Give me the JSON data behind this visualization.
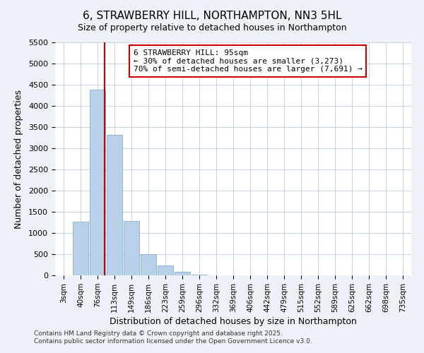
{
  "title": "6, STRAWBERRY HILL, NORTHAMPTON, NN3 5HL",
  "subtitle": "Size of property relative to detached houses in Northampton",
  "xlabel": "Distribution of detached houses by size in Northampton",
  "ylabel": "Number of detached properties",
  "bar_labels": [
    "3sqm",
    "40sqm",
    "76sqm",
    "113sqm",
    "149sqm",
    "186sqm",
    "223sqm",
    "259sqm",
    "296sqm",
    "332sqm",
    "369sqm",
    "406sqm",
    "442sqm",
    "479sqm",
    "515sqm",
    "552sqm",
    "589sqm",
    "625sqm",
    "662sqm",
    "698sqm",
    "735sqm"
  ],
  "bar_values": [
    0,
    1270,
    4380,
    3320,
    1290,
    500,
    230,
    80,
    20,
    5,
    2,
    1,
    0,
    0,
    0,
    0,
    0,
    0,
    0,
    0,
    0
  ],
  "bar_color": "#b8d0e8",
  "bar_edge_color": "#90b4d0",
  "vline_color": "#cc0000",
  "vline_x_index": 2.42,
  "annotation_text": "6 STRAWBERRY HILL: 95sqm\n← 30% of detached houses are smaller (3,273)\n70% of semi-detached houses are larger (7,691) →",
  "annotation_box_color": "#ffffff",
  "annotation_box_edge_color": "#cc0000",
  "ylim": [
    0,
    5500
  ],
  "yticks": [
    0,
    500,
    1000,
    1500,
    2000,
    2500,
    3000,
    3500,
    4000,
    4500,
    5000,
    5500
  ],
  "footer_line1": "Contains HM Land Registry data © Crown copyright and database right 2025.",
  "footer_line2": "Contains public sector information licensed under the Open Government Licence v3.0.",
  "bg_color": "#eef2f8",
  "plot_bg_color": "#ffffff",
  "grid_color": "#c8d4e4"
}
